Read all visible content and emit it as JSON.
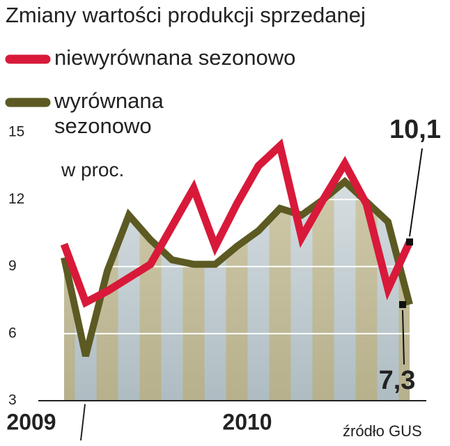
{
  "chart_data": {
    "type": "line",
    "title": "Zmiany wartości produkcji sprzedanej",
    "subtitle": "w proc.",
    "source": "źródło GUS",
    "categories": [
      "2009",
      null,
      null,
      null,
      null,
      null,
      null,
      null,
      "2010",
      null,
      null,
      null,
      null,
      null,
      null,
      null,
      null
    ],
    "series": [
      {
        "name": "niewyrównana sezonowo",
        "color": "#d8193a",
        "values": [
          10.0,
          7.4,
          7.9,
          8.5,
          9.1,
          10.8,
          12.5,
          9.9,
          11.8,
          13.5,
          14.4,
          10.3,
          12.0,
          13.6,
          11.8,
          8.0,
          10.1
        ],
        "value_labels": [
          null,
          null,
          null,
          null,
          null,
          null,
          null,
          null,
          null,
          null,
          null,
          null,
          null,
          null,
          null,
          null,
          "10,1"
        ]
      },
      {
        "name": "wyrównana sezonowo",
        "color": "#5c5a22",
        "values": [
          9.4,
          5.0,
          8.8,
          11.3,
          10.2,
          9.3,
          9.1,
          9.1,
          9.9,
          10.6,
          11.6,
          11.3,
          12.0,
          12.8,
          11.9,
          11.0,
          7.3
        ],
        "value_labels": [
          null,
          null,
          null,
          null,
          null,
          null,
          null,
          null,
          null,
          null,
          null,
          null,
          null,
          null,
          null,
          null,
          "7,3"
        ]
      }
    ],
    "ylim": [
      3,
      15
    ],
    "yticks": [
      3,
      6,
      9,
      12,
      15
    ],
    "grid": true
  }
}
